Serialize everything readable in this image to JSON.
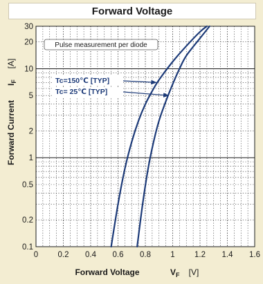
{
  "chart_data": {
    "type": "line",
    "title": "Forward Voltage",
    "note": "Pulse measurement per diode",
    "x_axis": {
      "label": "Forward Voltage",
      "symbol": "V",
      "subscript": "F",
      "unit": "[V]",
      "range": [
        0,
        1.6
      ],
      "ticks": [
        0,
        0.2,
        0.4,
        0.6,
        0.8,
        1,
        1.2,
        1.4,
        1.6
      ],
      "tick_labels": [
        "0",
        "0.2",
        "0.4",
        "0.6",
        "0.8",
        "1",
        "1.2",
        "1.4",
        "1.6"
      ]
    },
    "y_axis": {
      "label": "Forward Current",
      "symbol": "I",
      "subscript": "F",
      "unit": "[A]",
      "scale": "log",
      "range": [
        0.1,
        30
      ],
      "ticks": [
        0.1,
        0.2,
        0.5,
        1,
        2,
        5,
        10,
        20,
        30
      ],
      "tick_labels": [
        "0.1",
        "0.2",
        "0.5",
        "1",
        "2",
        "5",
        "10",
        "20",
        "30"
      ]
    },
    "grid": true,
    "series": [
      {
        "name": "Tc=150℃ [TYP]",
        "color": "#1c3a78",
        "points": [
          [
            0.55,
            0.1
          ],
          [
            0.6,
            0.3
          ],
          [
            0.65,
            0.75
          ],
          [
            0.7,
            1.5
          ],
          [
            0.75,
            2.6
          ],
          [
            0.8,
            4.0
          ],
          [
            0.85,
            5.6
          ],
          [
            0.9,
            7.5
          ],
          [
            1.0,
            12.0
          ],
          [
            1.1,
            18.0
          ],
          [
            1.2,
            26.0
          ],
          [
            1.25,
            30.0
          ]
        ]
      },
      {
        "name": "Tc= 25℃ [TYP]",
        "color": "#1c3a78",
        "points": [
          [
            0.74,
            0.1
          ],
          [
            0.78,
            0.3
          ],
          [
            0.82,
            0.75
          ],
          [
            0.86,
            1.5
          ],
          [
            0.9,
            2.6
          ],
          [
            0.95,
            4.3
          ],
          [
            1.0,
            6.7
          ],
          [
            1.05,
            10.0
          ],
          [
            1.1,
            14.0
          ],
          [
            1.2,
            22.0
          ],
          [
            1.27,
            30.0
          ]
        ]
      }
    ],
    "annotations": [
      {
        "text": "Tc=150℃ [TYP]",
        "points_to": [
          0.88,
          7.0
        ]
      },
      {
        "text": "Tc= 25℃ [TYP]",
        "points_to": [
          0.97,
          5.0
        ]
      }
    ]
  }
}
